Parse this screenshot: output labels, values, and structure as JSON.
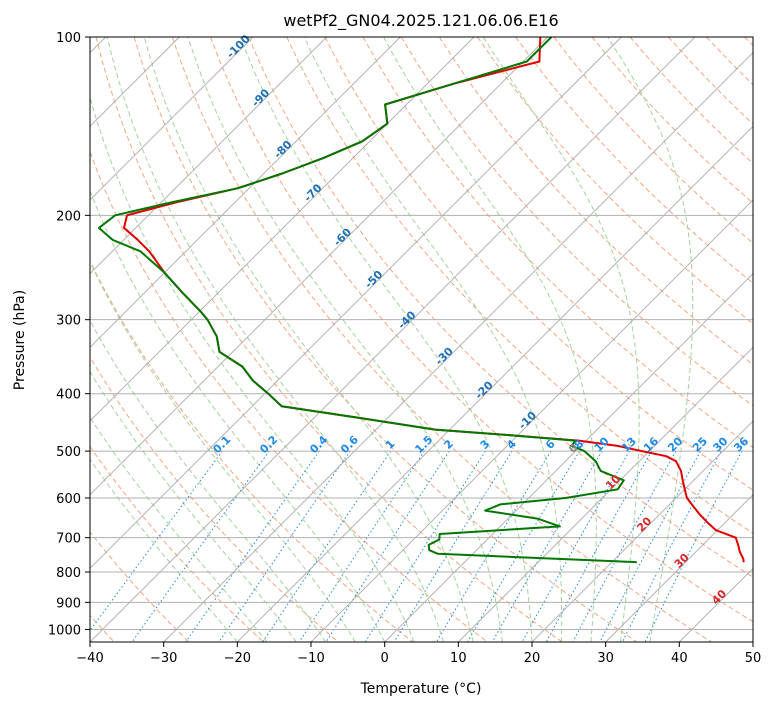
{
  "chart_data": {
    "type": "line",
    "subtype": "skew-t log-p diagram",
    "title": "wetPf2_GN04.2025.121.06.06.E16",
    "xlabel": "Temperature (°C)",
    "ylabel": "Pressure (hPa)",
    "xlim": [
      -40,
      50
    ],
    "ylim": [
      1050,
      100
    ],
    "y_scale": "log",
    "grid": true,
    "x_ticks": [
      -40,
      -30,
      -20,
      -10,
      0,
      10,
      20,
      30,
      40,
      50
    ],
    "x_tick_labels": [
      "−40",
      "−30",
      "−20",
      "−10",
      "0",
      "10",
      "20",
      "30",
      "40",
      "50"
    ],
    "y_ticks": [
      100,
      200,
      300,
      400,
      500,
      600,
      700,
      800,
      900,
      1000
    ],
    "y_tick_labels": [
      "100",
      "200",
      "300",
      "400",
      "500",
      "600",
      "700",
      "800",
      "900",
      "1000"
    ],
    "series": [
      {
        "role": "temperature",
        "color": "#e00000",
        "pressure": [
          100,
          110,
          120,
          130,
          140,
          150,
          160,
          170,
          180,
          190,
          200,
          210,
          220,
          230,
          250,
          270,
          290,
          300,
          320,
          340,
          360,
          380,
          400,
          420,
          440,
          460,
          470,
          480,
          490,
          500,
          510,
          520,
          540,
          560,
          580,
          600,
          620,
          640,
          660,
          680,
          700,
          720,
          740,
          760,
          770
        ],
        "values": [
          -61,
          -57.8,
          -66.5,
          -72.9,
          -70,
          -71,
          -74,
          -77.5,
          -81.5,
          -87.9,
          -92.9,
          -91.6,
          -88.1,
          -85,
          -80,
          -74.9,
          -70,
          -67.8,
          -64.3,
          -61.8,
          -56.7,
          -53.4,
          -49.5,
          -46,
          -33.5,
          -22,
          -11,
          -1,
          5,
          9,
          13,
          15,
          17,
          18.5,
          20,
          21.5,
          23.5,
          25.5,
          27.6,
          29.8,
          33.5,
          34.8,
          36,
          37.4,
          37.9
        ]
      },
      {
        "role": "dewpoint",
        "color": "#007700",
        "pressure": [
          100,
          110,
          120,
          130,
          140,
          150,
          160,
          170,
          180,
          190,
          200,
          210,
          220,
          230,
          250,
          270,
          290,
          300,
          320,
          340,
          360,
          380,
          400,
          420,
          440,
          460,
          470,
          480,
          490,
          500,
          520,
          540,
          560,
          580,
          600,
          615,
          630,
          650,
          670,
          690,
          705,
          720,
          735,
          745,
          770
        ],
        "values": [
          -59.5,
          -59.5,
          -66.5,
          -72.9,
          -70,
          -71,
          -74,
          -77.5,
          -81.5,
          -88.5,
          -94.5,
          -95,
          -91.5,
          -86.2,
          -80,
          -74.9,
          -70,
          -67.8,
          -64.3,
          -61.8,
          -56.7,
          -53.4,
          -49.5,
          -46,
          -33.5,
          -22,
          -11,
          -1.5,
          -1.2,
          1.2,
          4.1,
          6.1,
          10.5,
          10.9,
          5,
          -3,
          -4.2,
          4,
          8.1,
          -7.2,
          -6.5,
          -7.2,
          -6.4,
          -4.8,
          23.4
        ]
      }
    ],
    "background_lines": {
      "isotherms_label_color": "#1f6fb4",
      "isotherm_labels": [
        -100,
        -90,
        -80,
        -70,
        -60,
        -50,
        -40,
        -30,
        -20,
        -10,
        0,
        10,
        20,
        30,
        40
      ],
      "isotherm_red_labels": [
        10,
        20,
        30,
        40
      ],
      "isotherm_red_color": "#d62728",
      "isotherm_grey_labels": [
        0
      ],
      "dry_adiabat_color": "#f4a582",
      "moist_adiabat_color": "#a3d39c",
      "mixing_ratio_color": "#1e88e5",
      "mixing_ratio_labels": [
        "0.1",
        "0.2",
        "0.4",
        "0.6",
        "1",
        "1.5",
        "2",
        "3",
        "4",
        "6",
        "8",
        "10",
        "13",
        "16",
        "20",
        "25",
        "30",
        "36"
      ],
      "mixing_ratio_values": [
        0.1,
        0.2,
        0.4,
        0.6,
        1,
        1.5,
        2,
        3,
        4,
        6,
        8,
        10,
        13,
        16,
        20,
        25,
        30,
        36
      ],
      "mixing_ratio_label_pressure": 500
    }
  }
}
